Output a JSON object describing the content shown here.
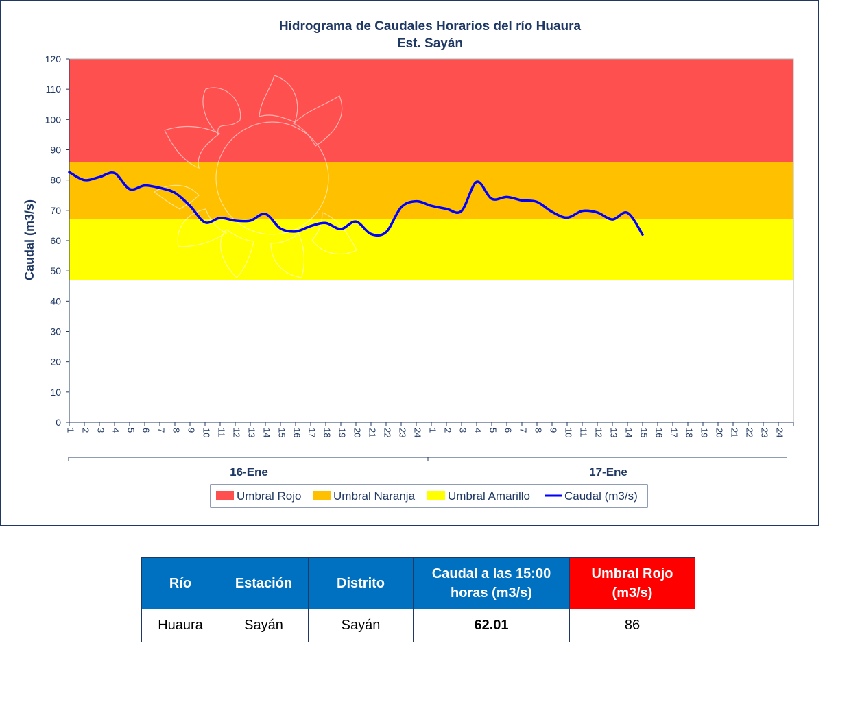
{
  "colors": {
    "red_band": "#ff5050",
    "orange_band": "#ffc000",
    "yellow_band": "#ffff00",
    "flow_line": "#0000ff",
    "text": "#1f3864",
    "table_header": "#0070c0",
    "table_header_red": "#ff0000"
  },
  "chart_data": {
    "type": "line",
    "title": "Hidrograma  de Caudales Horarios  del río Huaura",
    "subtitle": "Est. Sayán",
    "ylabel": "Caudal (m3/s)",
    "xlabel": "",
    "ylim": [
      0,
      120
    ],
    "yticks": [
      0,
      10,
      20,
      30,
      40,
      50,
      60,
      70,
      80,
      90,
      100,
      110,
      120
    ],
    "grid": false,
    "legend_position": "bottom",
    "days": [
      {
        "label": "16-Ene",
        "hours": [
          "1",
          "2",
          "3",
          "4",
          "5",
          "6",
          "7",
          "8",
          "9",
          "10",
          "11",
          "12",
          "13",
          "14",
          "15",
          "16",
          "17",
          "18",
          "19",
          "20",
          "21",
          "22",
          "23",
          "24"
        ]
      },
      {
        "label": "17-Ene",
        "hours": [
          "1",
          "2",
          "3",
          "4",
          "5",
          "6",
          "7",
          "8",
          "9",
          "10",
          "11",
          "12",
          "13",
          "14",
          "15",
          "16",
          "17",
          "18",
          "19",
          "20",
          "21",
          "22",
          "23",
          "24"
        ]
      }
    ],
    "thresholds": [
      {
        "name": "Umbral Rojo",
        "from": 86,
        "to": 120,
        "color": "#ff5050"
      },
      {
        "name": "Umbral Naranja",
        "from": 67,
        "to": 86,
        "color": "#ffc000"
      },
      {
        "name": "Umbral Amarillo",
        "from": 47,
        "to": 67,
        "color": "#ffff00"
      }
    ],
    "series": [
      {
        "name": "Caudal (m3/s)",
        "color": "#0000ff",
        "values": [
          82.6,
          80.0,
          81.0,
          82.3,
          77.0,
          78.2,
          77.4,
          75.8,
          71.5,
          66.0,
          67.5,
          66.6,
          66.6,
          68.8,
          64.0,
          63.0,
          64.8,
          65.8,
          63.8,
          66.3,
          62.2,
          62.8,
          71.0,
          73.0,
          71.5,
          70.5,
          69.8,
          79.4,
          73.8,
          74.4,
          73.3,
          72.8,
          69.5,
          67.6,
          69.8,
          69.3,
          67.0,
          69.2,
          62.0
        ]
      }
    ]
  },
  "legend": {
    "red": "Umbral Rojo",
    "orange": "Umbral Naranja",
    "yellow": "Umbral Amarillo",
    "line": "Caudal (m3/s)"
  },
  "table": {
    "headers": {
      "river": "Río",
      "station": "Estación",
      "district": "Distrito",
      "flow_line1": "Caudal a las 15:00",
      "flow_line2": "horas (m3/s)",
      "threshold_line1": "Umbral Rojo",
      "threshold_line2": "(m3/s)"
    },
    "row": {
      "river": "Huaura",
      "station": "Sayán",
      "district": "Sayán",
      "flow": "62.01",
      "threshold": "86"
    }
  }
}
